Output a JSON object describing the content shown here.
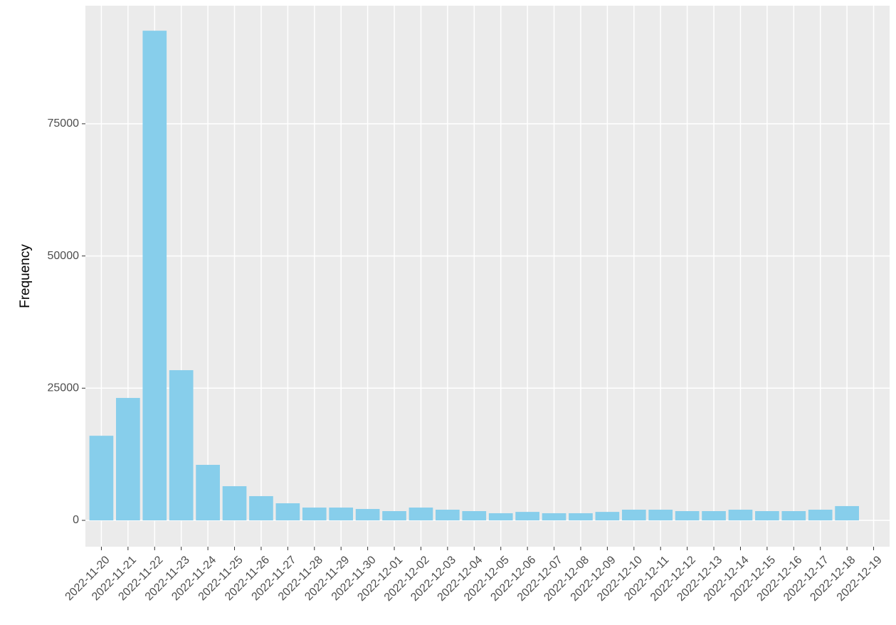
{
  "chart_data": {
    "type": "bar",
    "y_label": "Frequency",
    "categories": [
      "2022-11-20",
      "2022-11-21",
      "2022-11-22",
      "2022-11-23",
      "2022-11-24",
      "2022-11-25",
      "2022-11-26",
      "2022-11-27",
      "2022-11-28",
      "2022-11-29",
      "2022-11-30",
      "2022-12-01",
      "2022-12-02",
      "2022-12-03",
      "2022-12-04",
      "2022-12-05",
      "2022-12-06",
      "2022-12-07",
      "2022-12-08",
      "2022-12-09",
      "2022-12-10",
      "2022-12-11",
      "2022-12-12",
      "2022-12-13",
      "2022-12-14",
      "2022-12-15",
      "2022-12-16",
      "2022-12-17",
      "2022-12-18",
      "2022-12-19"
    ],
    "values": [
      16000,
      23150,
      92600,
      28400,
      10500,
      6460,
      4580,
      3230,
      2420,
      2420,
      2150,
      1750,
      2420,
      2020,
      1750,
      1350,
      1600,
      1350,
      1350,
      1600,
      2020,
      2020,
      1750,
      1750,
      2020,
      1750,
      1750,
      2020,
      2700,
      null
    ],
    "color": "#87ceeb",
    "ylim": [
      -4980,
      97330
    ],
    "yticks": [
      0,
      25000,
      50000,
      75000
    ],
    "grid": true
  }
}
